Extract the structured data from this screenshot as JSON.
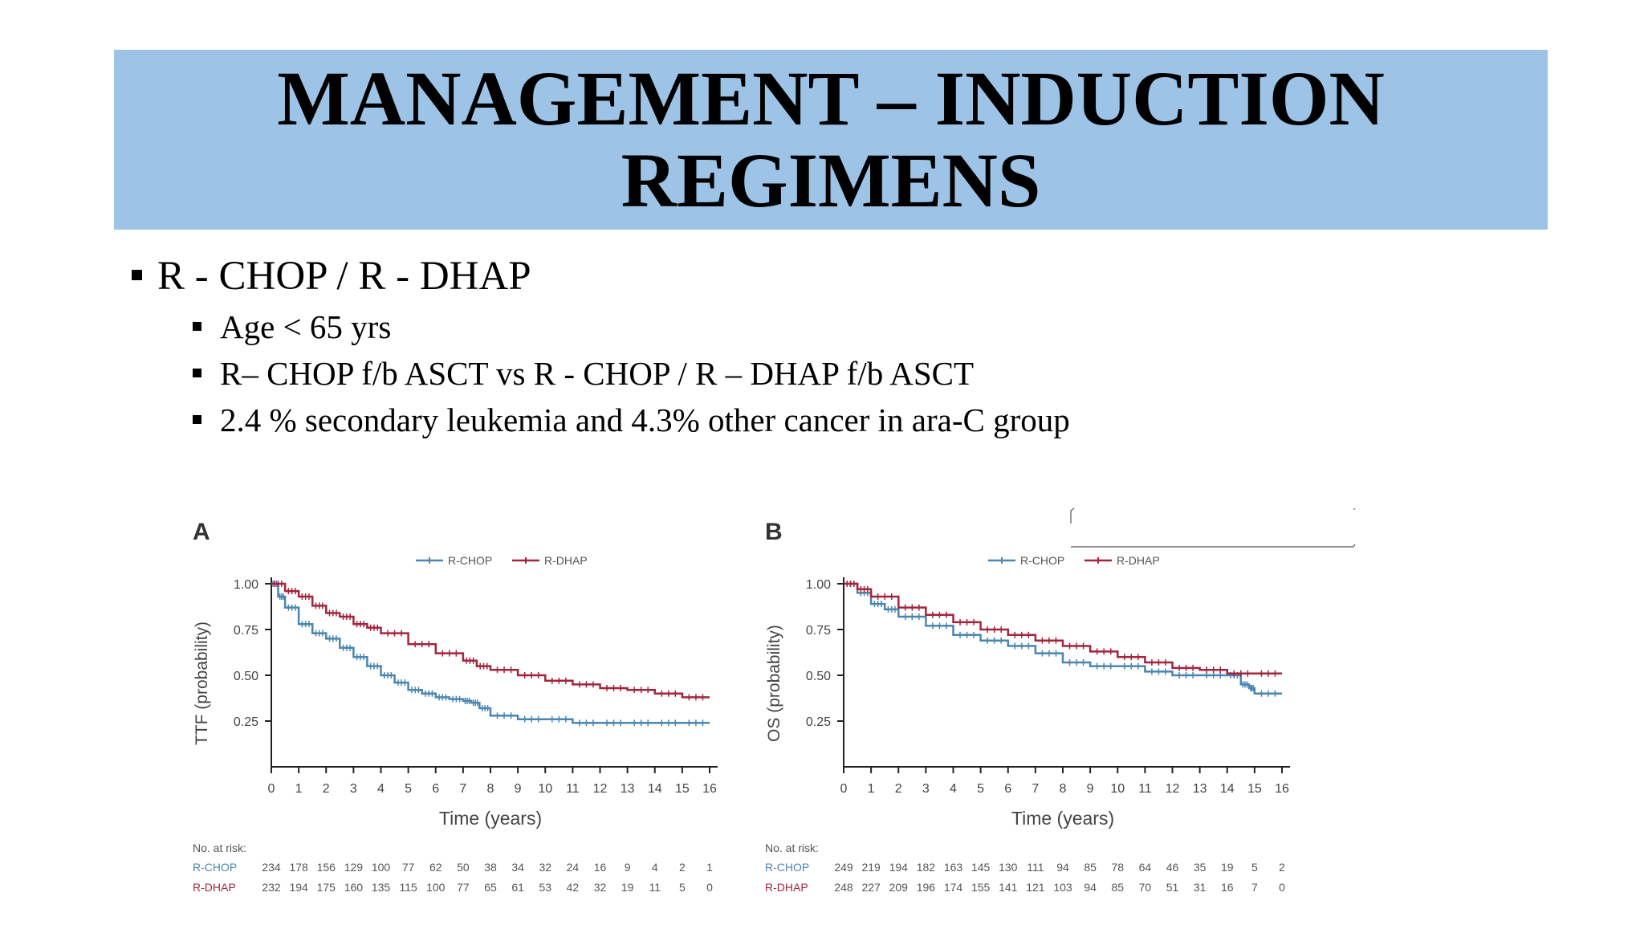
{
  "slide": {
    "title_line1": "MANAGEMENT – INDUCTION",
    "title_line2": "REGIMENS",
    "bullet": "R - CHOP / R - DHAP",
    "subbullets": [
      "Age < 65 yrs",
      "R– CHOP f/b ASCT vs R - CHOP / R – DHAP f/b ASCT",
      "2.4 % secondary leukemia and 4.3% other cancer in ara-C group"
    ]
  },
  "colors": {
    "banner": "#9dc3e6",
    "rchop": "#4a86b0",
    "rdhap": "#a3253d"
  },
  "chart_data": [
    {
      "type": "line",
      "panel": "A",
      "xlabel": "Time (years)",
      "ylabel": "TTF (probability)",
      "xlim": [
        0,
        16
      ],
      "ylim": [
        0,
        1
      ],
      "yticks": [
        "1.00",
        "0.75",
        "0.50",
        "0.25"
      ],
      "xticks": [
        "0",
        "1",
        "2",
        "3",
        "4",
        "5",
        "6",
        "7",
        "8",
        "9",
        "10",
        "11",
        "12",
        "13",
        "14",
        "15",
        "16"
      ],
      "legend": [
        "R-CHOP",
        "R-DHAP"
      ],
      "series": [
        {
          "name": "R-CHOP",
          "x": [
            0,
            0.25,
            0.5,
            1,
            1.5,
            2,
            2.5,
            3,
            3.5,
            4,
            4.5,
            5,
            5.5,
            6,
            6.5,
            7,
            7.3,
            7.6,
            8,
            9,
            10,
            11,
            12,
            13,
            14,
            15,
            16
          ],
          "y": [
            1.0,
            0.93,
            0.87,
            0.78,
            0.73,
            0.7,
            0.65,
            0.6,
            0.55,
            0.5,
            0.46,
            0.42,
            0.4,
            0.38,
            0.37,
            0.36,
            0.35,
            0.32,
            0.28,
            0.26,
            0.26,
            0.24,
            0.24,
            0.24,
            0.24,
            0.24,
            0.24
          ]
        },
        {
          "name": "R-DHAP",
          "x": [
            0,
            0.5,
            1,
            1.5,
            2,
            2.5,
            3,
            3.5,
            4,
            5,
            6,
            7,
            7.5,
            8,
            9,
            10,
            11,
            12,
            13,
            14,
            15,
            16
          ],
          "y": [
            1.0,
            0.96,
            0.93,
            0.88,
            0.84,
            0.82,
            0.78,
            0.76,
            0.73,
            0.67,
            0.62,
            0.58,
            0.55,
            0.53,
            0.5,
            0.47,
            0.45,
            0.43,
            0.42,
            0.4,
            0.38,
            0.38
          ]
        }
      ],
      "risk_table": {
        "header": "No. at risk:",
        "rows": [
          {
            "label": "R-CHOP",
            "values": [
              "234",
              "178",
              "156",
              "129",
              "100",
              "77",
              "62",
              "50",
              "38",
              "34",
              "32",
              "24",
              "16",
              "9",
              "4",
              "2",
              "1"
            ]
          },
          {
            "label": "R-DHAP",
            "values": [
              "232",
              "194",
              "175",
              "160",
              "135",
              "115",
              "100",
              "77",
              "65",
              "61",
              "53",
              "42",
              "32",
              "19",
              "11",
              "5",
              "0"
            ]
          }
        ]
      }
    },
    {
      "type": "line",
      "panel": "B",
      "xlabel": "Time (years)",
      "ylabel": "OS (probability)",
      "xlim": [
        0,
        16
      ],
      "ylim": [
        0,
        1
      ],
      "yticks": [
        "1.00",
        "0.75",
        "0.50",
        "0.25"
      ],
      "xticks": [
        "0",
        "1",
        "2",
        "3",
        "4",
        "5",
        "6",
        "7",
        "8",
        "9",
        "10",
        "11",
        "12",
        "13",
        "14",
        "15",
        "16"
      ],
      "legend": [
        "R-CHOP",
        "R-DHAP"
      ],
      "series": [
        {
          "name": "R-CHOP",
          "x": [
            0,
            0.5,
            1,
            1.5,
            2,
            3,
            4,
            5,
            6,
            7,
            8,
            9,
            10,
            11,
            12,
            13,
            14,
            14.5,
            14.8,
            15,
            16
          ],
          "y": [
            1.0,
            0.95,
            0.89,
            0.86,
            0.82,
            0.77,
            0.72,
            0.69,
            0.66,
            0.62,
            0.57,
            0.55,
            0.55,
            0.52,
            0.5,
            0.5,
            0.5,
            0.45,
            0.43,
            0.4,
            0.4
          ]
        },
        {
          "name": "R-DHAP",
          "x": [
            0,
            0.5,
            1,
            2,
            3,
            4,
            5,
            6,
            7,
            8,
            9,
            10,
            11,
            12,
            13,
            14,
            15,
            16
          ],
          "y": [
            1.0,
            0.97,
            0.93,
            0.87,
            0.83,
            0.79,
            0.75,
            0.72,
            0.69,
            0.66,
            0.63,
            0.6,
            0.57,
            0.54,
            0.53,
            0.51,
            0.51,
            0.51
          ]
        }
      ],
      "risk_table": {
        "header": "No. at risk:",
        "rows": [
          {
            "label": "R-CHOP",
            "values": [
              "249",
              "219",
              "194",
              "182",
              "163",
              "145",
              "130",
              "111",
              "94",
              "85",
              "78",
              "64",
              "46",
              "35",
              "19",
              "5",
              "2"
            ]
          },
          {
            "label": "R-DHAP",
            "values": [
              "248",
              "227",
              "209",
              "196",
              "174",
              "155",
              "141",
              "121",
              "103",
              "94",
              "85",
              "70",
              "51",
              "31",
              "16",
              "7",
              "0"
            ]
          }
        ]
      }
    }
  ]
}
